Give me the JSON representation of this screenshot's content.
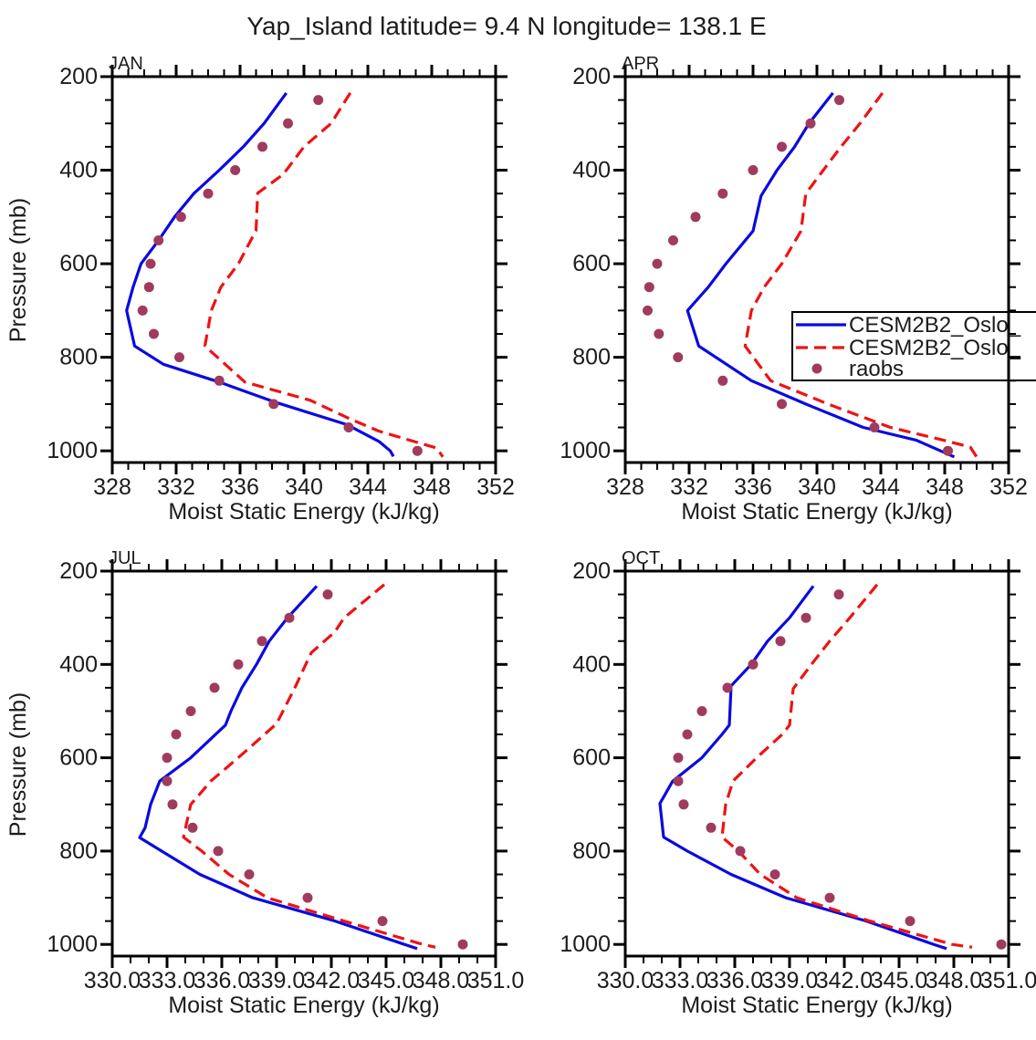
{
  "page_title": "Yap_Island  latitude= 9.4 N longitude= 138.1 E",
  "y_axis_label": "Pressure (mb)",
  "x_axis_label": "Moist Static Energy (kJ/kg)",
  "colors": {
    "blue": "#0a0ae0",
    "red": "#ee1313",
    "maroon": "#a03a5e",
    "axis": "#000000"
  },
  "legend": {
    "entries": [
      {
        "label": "CESM2B2_Oslo_",
        "style": "solid",
        "color": "blue"
      },
      {
        "label": "CESM2B2_Oslo_",
        "style": "dashed",
        "color": "red"
      },
      {
        "label": "raobs",
        "style": "dots",
        "color": "maroon"
      }
    ]
  },
  "chart_data": [
    {
      "type": "line",
      "month": "JAN",
      "xlabel": "Moist Static Energy (kJ/kg)",
      "ylabel": "Pressure (mb)",
      "xlim": [
        328,
        352
      ],
      "ylim": [
        200,
        1025
      ],
      "y_inverted": true,
      "xticks": {
        "values": [
          328,
          332,
          336,
          340,
          344,
          348,
          352
        ],
        "labels": [
          "328",
          "332",
          "336",
          "340",
          "344",
          "348",
          "352"
        ],
        "minor_step": 1
      },
      "yticks": {
        "values": [
          200,
          400,
          600,
          800,
          1000
        ],
        "labels": [
          "200",
          "400",
          "600",
          "800",
          "1000"
        ],
        "minor_step": 50
      },
      "show_legend": false,
      "series": [
        {
          "name": "CESM2B2_Oslo_",
          "style": "solid",
          "color": "blue",
          "points": [
            [
              338.9,
              235
            ],
            [
              337.5,
              300
            ],
            [
              336.2,
              350
            ],
            [
              334.7,
              400
            ],
            [
              333.1,
              450
            ],
            [
              331.9,
              500
            ],
            [
              330.9,
              550
            ],
            [
              329.8,
              600
            ],
            [
              329.3,
              650
            ],
            [
              328.9,
              700
            ],
            [
              329.4,
              776
            ],
            [
              331.2,
              815
            ],
            [
              334.7,
              853
            ],
            [
              338.1,
              895
            ],
            [
              342.7,
              944
            ],
            [
              344.7,
              980
            ],
            [
              345.4,
              1000
            ],
            [
              345.6,
              1012
            ]
          ]
        },
        {
          "name": "CESM2B2_Oslo_",
          "style": "dashed",
          "color": "red",
          "points": [
            [
              342.9,
              235
            ],
            [
              341.7,
              300
            ],
            [
              340.0,
              350
            ],
            [
              338.7,
              409
            ],
            [
              337.1,
              449
            ],
            [
              337.0,
              529
            ],
            [
              335.9,
              600
            ],
            [
              334.8,
              650
            ],
            [
              334.2,
              700
            ],
            [
              333.8,
              776
            ],
            [
              336.3,
              853
            ],
            [
              340.4,
              892
            ],
            [
              342.9,
              932
            ],
            [
              344.7,
              958
            ],
            [
              346.3,
              974
            ],
            [
              348.3,
              994
            ],
            [
              348.7,
              1013
            ]
          ]
        },
        {
          "name": "raobs",
          "style": "dots",
          "color": "maroon",
          "points": [
            [
              340.9,
              250
            ],
            [
              339.0,
              300
            ],
            [
              337.4,
              350
            ],
            [
              335.7,
              400
            ],
            [
              334.0,
              450
            ],
            [
              332.3,
              500
            ],
            [
              330.9,
              550
            ],
            [
              330.4,
              600
            ],
            [
              330.3,
              650
            ],
            [
              329.9,
              700
            ],
            [
              330.6,
              750
            ],
            [
              332.2,
              800
            ],
            [
              334.7,
              850
            ],
            [
              338.1,
              900
            ],
            [
              342.8,
              950
            ],
            [
              347.1,
              1000
            ]
          ]
        }
      ]
    },
    {
      "type": "line",
      "month": "APR",
      "xlabel": "Moist Static Energy (kJ/kg)",
      "ylabel": "Pressure (mb)",
      "xlim": [
        328,
        352
      ],
      "ylim": [
        200,
        1025
      ],
      "y_inverted": true,
      "xticks": {
        "values": [
          328,
          332,
          336,
          340,
          344,
          348,
          352
        ],
        "labels": [
          "328",
          "332",
          "336",
          "340",
          "344",
          "348",
          "352"
        ],
        "minor_step": 1
      },
      "yticks": {
        "values": [
          200,
          400,
          600,
          800,
          1000
        ],
        "labels": [
          "200",
          "400",
          "600",
          "800",
          "1000"
        ],
        "minor_step": 50
      },
      "show_legend": true,
      "series": [
        {
          "name": "CESM2B2_Oslo_",
          "style": "solid",
          "color": "blue",
          "points": [
            [
              341.0,
              235
            ],
            [
              339.5,
              300
            ],
            [
              338.6,
              350
            ],
            [
              337.5,
              400
            ],
            [
              336.5,
              455
            ],
            [
              336.2,
              500
            ],
            [
              336.0,
              530
            ],
            [
              334.3,
              600
            ],
            [
              333.2,
              650
            ],
            [
              331.9,
              700
            ],
            [
              332.6,
              776
            ],
            [
              335.9,
              850
            ],
            [
              339.3,
              900
            ],
            [
              342.9,
              950
            ],
            [
              346.2,
              977
            ],
            [
              348.6,
              1013
            ]
          ]
        },
        {
          "name": "CESM2B2_Oslo_",
          "style": "dashed",
          "color": "red",
          "points": [
            [
              344.1,
              235
            ],
            [
              342.7,
              300
            ],
            [
              341.5,
              350
            ],
            [
              340.4,
              400
            ],
            [
              339.3,
              450
            ],
            [
              339.0,
              530
            ],
            [
              337.8,
              600
            ],
            [
              336.7,
              650
            ],
            [
              335.9,
              700
            ],
            [
              335.5,
              776
            ],
            [
              337.1,
              850
            ],
            [
              340.7,
              900
            ],
            [
              344.6,
              950
            ],
            [
              347.9,
              977
            ],
            [
              349.6,
              992
            ],
            [
              350.0,
              1013
            ]
          ]
        },
        {
          "name": "raobs",
          "style": "dots",
          "color": "maroon",
          "points": [
            [
              341.4,
              250
            ],
            [
              339.6,
              300
            ],
            [
              337.8,
              350
            ],
            [
              336.0,
              400
            ],
            [
              334.1,
              450
            ],
            [
              332.4,
              500
            ],
            [
              331.0,
              550
            ],
            [
              330.0,
              600
            ],
            [
              329.5,
              650
            ],
            [
              329.4,
              700
            ],
            [
              330.1,
              750
            ],
            [
              331.3,
              800
            ],
            [
              334.1,
              850
            ],
            [
              337.8,
              900
            ],
            [
              343.6,
              950
            ],
            [
              348.2,
              1000
            ]
          ]
        }
      ]
    },
    {
      "type": "line",
      "month": "JUL",
      "xlabel": "Moist Static Energy (kJ/kg)",
      "ylabel": "Pressure (mb)",
      "xlim": [
        330,
        351
      ],
      "ylim": [
        200,
        1025
      ],
      "y_inverted": true,
      "xticks": {
        "values": [
          330,
          333,
          336,
          339,
          342,
          345,
          348,
          351
        ],
        "labels": [
          "330.0",
          "333.0",
          "336.0",
          "339.0",
          "342.0",
          "345.0",
          "348.0",
          "351.0"
        ],
        "minor_step": 1
      },
      "yticks": {
        "values": [
          200,
          400,
          600,
          800,
          1000
        ],
        "labels": [
          "200",
          "400",
          "600",
          "800",
          "1000"
        ],
        "minor_step": 50
      },
      "show_legend": false,
      "series": [
        {
          "name": "CESM2B2_Oslo_",
          "style": "solid",
          "color": "blue",
          "points": [
            [
              341.2,
              232
            ],
            [
              339.6,
              300
            ],
            [
              338.6,
              350
            ],
            [
              337.9,
              400
            ],
            [
              337.1,
              450
            ],
            [
              336.5,
              500
            ],
            [
              336.2,
              530
            ],
            [
              334.3,
              600
            ],
            [
              332.6,
              650
            ],
            [
              332.1,
              700
            ],
            [
              331.8,
              750
            ],
            [
              331.5,
              771
            ],
            [
              332.7,
              800
            ],
            [
              334.8,
              850
            ],
            [
              337.7,
              900
            ],
            [
              342.2,
              950
            ],
            [
              346.0,
              1000
            ],
            [
              346.7,
              1009
            ]
          ]
        },
        {
          "name": "CESM2B2_Oslo_",
          "style": "dashed",
          "color": "red",
          "points": [
            [
              344.9,
              229
            ],
            [
              342.7,
              300
            ],
            [
              342.2,
              330
            ],
            [
              340.9,
              375
            ],
            [
              340.0,
              450
            ],
            [
              339.0,
              527
            ],
            [
              336.9,
              600
            ],
            [
              335.4,
              650
            ],
            [
              334.3,
              700
            ],
            [
              333.9,
              770
            ],
            [
              334.9,
              800
            ],
            [
              336.4,
              850
            ],
            [
              338.5,
              900
            ],
            [
              342.7,
              950
            ],
            [
              347.0,
              1000
            ],
            [
              347.7,
              1006
            ]
          ]
        },
        {
          "name": "raobs",
          "style": "dots",
          "color": "maroon",
          "points": [
            [
              341.8,
              250
            ],
            [
              339.7,
              300
            ],
            [
              338.2,
              350
            ],
            [
              336.9,
              400
            ],
            [
              335.6,
              450
            ],
            [
              334.3,
              500
            ],
            [
              333.5,
              550
            ],
            [
              333.0,
              600
            ],
            [
              333.0,
              650
            ],
            [
              333.3,
              700
            ],
            [
              334.4,
              750
            ],
            [
              335.8,
              800
            ],
            [
              337.5,
              850
            ],
            [
              340.7,
              900
            ],
            [
              344.8,
              950
            ],
            [
              349.2,
              1000
            ]
          ]
        }
      ]
    },
    {
      "type": "line",
      "month": "OCT",
      "xlabel": "Moist Static Energy (kJ/kg)",
      "ylabel": "Pressure (mb)",
      "xlim": [
        330,
        351
      ],
      "ylim": [
        200,
        1025
      ],
      "y_inverted": true,
      "xticks": {
        "values": [
          330,
          333,
          336,
          339,
          342,
          345,
          348,
          351
        ],
        "labels": [
          "330.0",
          "333.0",
          "336.0",
          "339.0",
          "342.0",
          "345.0",
          "348.0",
          "351.0"
        ],
        "minor_step": 1
      },
      "yticks": {
        "values": [
          200,
          400,
          600,
          800,
          1000
        ],
        "labels": [
          "200",
          "400",
          "600",
          "800",
          "1000"
        ],
        "minor_step": 50
      },
      "show_legend": false,
      "series": [
        {
          "name": "CESM2B2_Oslo_",
          "style": "solid",
          "color": "blue",
          "points": [
            [
              340.3,
              232
            ],
            [
              339.0,
              300
            ],
            [
              337.8,
              350
            ],
            [
              336.9,
              400
            ],
            [
              335.8,
              446
            ],
            [
              335.7,
              530
            ],
            [
              335.3,
              550
            ],
            [
              334.2,
              600
            ],
            [
              332.6,
              650
            ],
            [
              331.9,
              698
            ],
            [
              332.1,
              770
            ],
            [
              333.4,
              800
            ],
            [
              335.8,
              850
            ],
            [
              338.8,
              900
            ],
            [
              343.2,
              950
            ],
            [
              346.9,
              1000
            ],
            [
              347.6,
              1009
            ]
          ]
        },
        {
          "name": "CESM2B2_Oslo_",
          "style": "dashed",
          "color": "red",
          "points": [
            [
              343.8,
              229
            ],
            [
              342.3,
              300
            ],
            [
              341.2,
              350
            ],
            [
              340.2,
              400
            ],
            [
              339.2,
              452
            ],
            [
              339.0,
              530
            ],
            [
              338.6,
              550
            ],
            [
              337.2,
              600
            ],
            [
              335.9,
              650
            ],
            [
              335.5,
              700
            ],
            [
              335.3,
              770
            ],
            [
              336.2,
              800
            ],
            [
              337.4,
              850
            ],
            [
              339.4,
              900
            ],
            [
              343.4,
              950
            ],
            [
              347.9,
              1000
            ],
            [
              349.0,
              1006
            ]
          ]
        },
        {
          "name": "raobs",
          "style": "dots",
          "color": "maroon",
          "points": [
            [
              341.7,
              250
            ],
            [
              339.9,
              300
            ],
            [
              338.5,
              350
            ],
            [
              337.0,
              400
            ],
            [
              335.6,
              450
            ],
            [
              334.2,
              500
            ],
            [
              333.4,
              550
            ],
            [
              332.9,
              600
            ],
            [
              332.9,
              650
            ],
            [
              333.2,
              700
            ],
            [
              334.7,
              750
            ],
            [
              336.3,
              800
            ],
            [
              338.2,
              850
            ],
            [
              341.2,
              900
            ],
            [
              345.6,
              950
            ],
            [
              350.6,
              1000
            ]
          ]
        }
      ]
    }
  ]
}
